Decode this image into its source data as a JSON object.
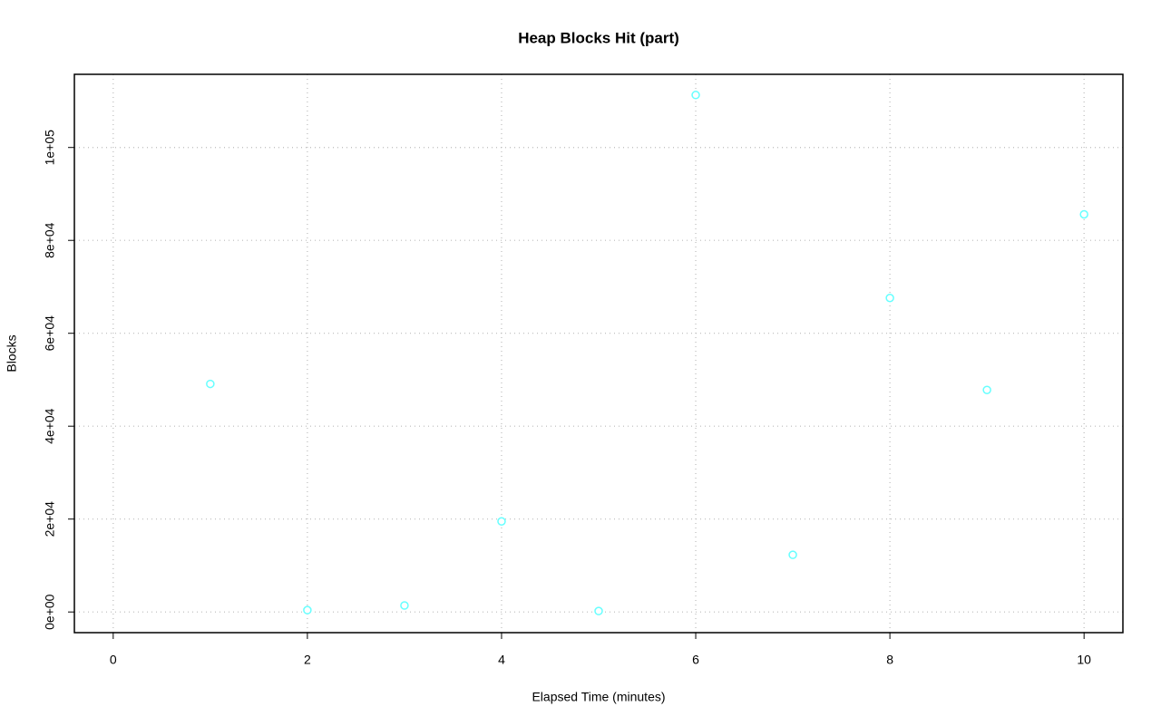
{
  "chart_data": {
    "type": "line",
    "title": "Heap Blocks Hit (part)",
    "x_label": "Elapsed Time (minutes)",
    "y_label": "Blocks",
    "series": [
      {
        "color": "#66ffff",
        "x": [
          1,
          2,
          3,
          4,
          5,
          6,
          7,
          8,
          9,
          10
        ],
        "values": [
          49100,
          400,
          1400,
          19500,
          200,
          111300,
          12300,
          67600,
          47800,
          85600
        ]
      }
    ],
    "xlim": [
      -0.4,
      10.4
    ],
    "xticks": [
      0,
      2,
      4,
      6,
      8,
      10
    ],
    "ylim": [
      -4450,
      115750
    ],
    "yticks": [
      {
        "value": 0,
        "label": "0e+00"
      },
      {
        "value": 20000,
        "label": "2e+04"
      },
      {
        "value": 40000,
        "label": "4e+04"
      },
      {
        "value": 60000,
        "label": "6e+04"
      },
      {
        "value": 80000,
        "label": "8e+04"
      },
      {
        "value": 100000,
        "label": "1e+05"
      }
    ],
    "grid": true
  }
}
